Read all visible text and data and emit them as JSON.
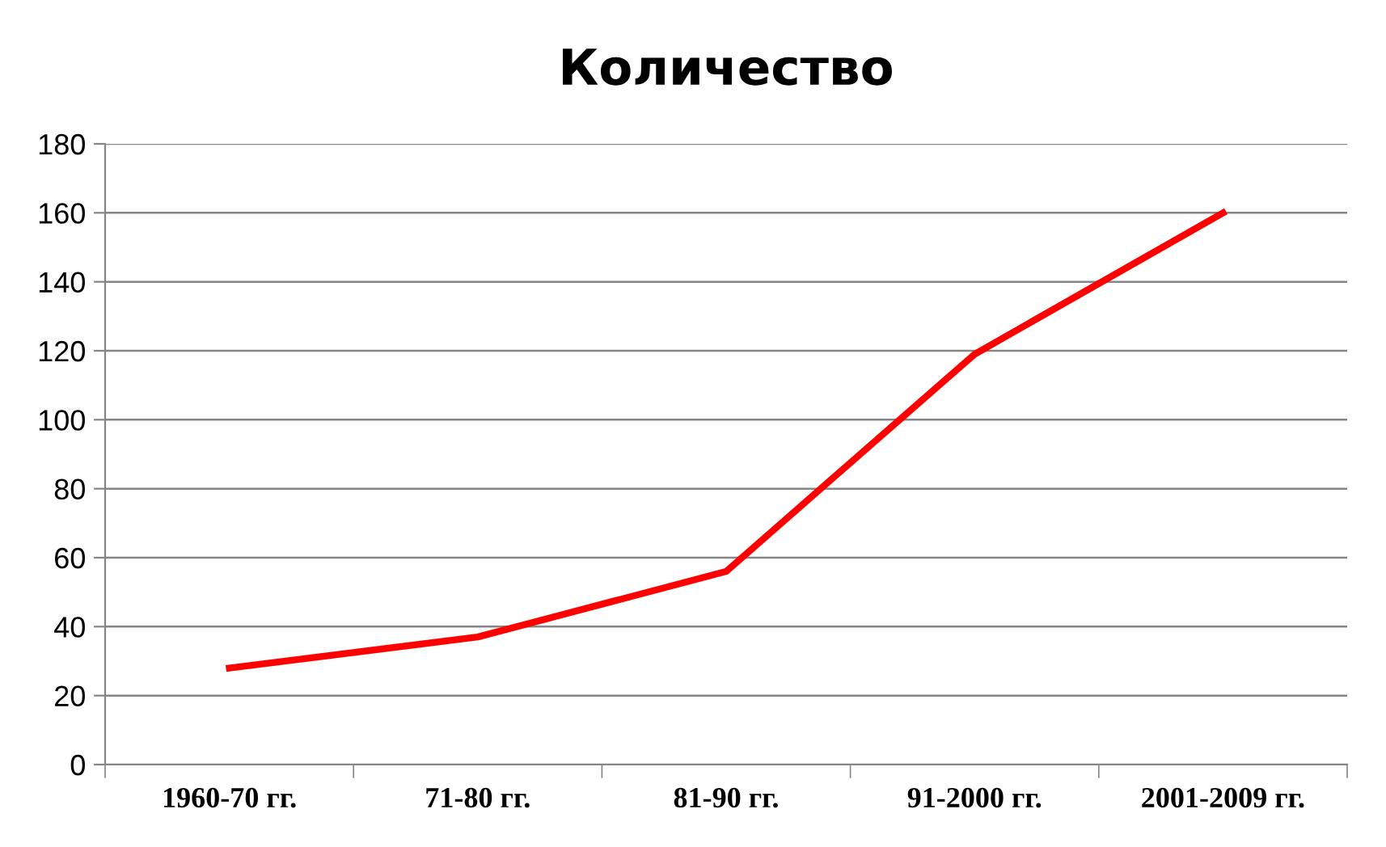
{
  "chart_data": {
    "type": "line",
    "title": "Количество",
    "categories": [
      "1960-70 гг.",
      "71-80 гг.",
      "81-90 гг.",
      "91-2000 гг.",
      "2001-2009 гг."
    ],
    "series": [
      {
        "color": "#ff0000",
        "values": [
          28,
          37,
          56,
          119,
          160
        ]
      }
    ],
    "ylim": [
      0,
      180
    ],
    "yticks": [
      0,
      20,
      40,
      60,
      80,
      100,
      120,
      140,
      160,
      180
    ],
    "grid": "y",
    "legend": false,
    "marker": "none",
    "line_style": "solid"
  }
}
